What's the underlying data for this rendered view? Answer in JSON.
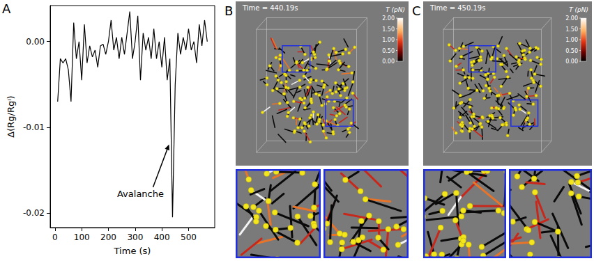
{
  "chart_data": {
    "type": "line",
    "panel": "A",
    "x": [
      10,
      20,
      30,
      40,
      50,
      60,
      70,
      80,
      90,
      100,
      110,
      120,
      130,
      140,
      150,
      160,
      170,
      180,
      190,
      200,
      210,
      220,
      230,
      240,
      250,
      260,
      270,
      280,
      290,
      300,
      310,
      320,
      330,
      340,
      350,
      360,
      370,
      380,
      390,
      400,
      410,
      420,
      430,
      440,
      450,
      460,
      470,
      480,
      490,
      500,
      510,
      520,
      530,
      540,
      550,
      560,
      570
    ],
    "values": [
      -0.007,
      -0.002,
      -0.0025,
      -0.002,
      -0.0033,
      -0.007,
      0.0022,
      -0.002,
      0,
      -0.0045,
      0.002,
      -0.0025,
      -0.0005,
      -0.0018,
      -0.001,
      -0.003,
      -0.0005,
      -0.0003,
      -0.0015,
      0,
      0.0025,
      -0.001,
      0.0005,
      -0.002,
      0.0005,
      -0.0015,
      0.001,
      0.0035,
      -0.002,
      0,
      0.003,
      -0.0045,
      0.001,
      -0.001,
      0.0005,
      -0.002,
      0.0015,
      -0.002,
      0,
      -0.003,
      0.0005,
      -0.0045,
      -0.002,
      -0.0205,
      -0.005,
      0.001,
      -0.0015,
      0.0005,
      -0.001,
      0.0015,
      -0.001,
      0,
      -0.0025,
      0.002,
      -0.0005,
      0.0025,
      0
    ],
    "color": "#000000",
    "xlabel": "Time (s)",
    "ylabel": "Δ(Rg/Rgⁱ)",
    "xlim": [
      -18,
      598
    ],
    "ylim": [
      -0.0217,
      0.0042
    ],
    "xticks": [
      0,
      100,
      200,
      300,
      400,
      500
    ],
    "yticks": [
      {
        "value": 0,
        "label": "0.00"
      },
      -0.01,
      -0.02
    ],
    "grid": false,
    "annotation": {
      "text": "Avalanche",
      "x": 320,
      "y": -0.0178,
      "arrow_to": [
        427,
        -0.012
      ]
    }
  },
  "network_panels": [
    {
      "panel": "B",
      "time_label": "Time = 440.19s",
      "colorbar": {
        "title": "T (pN)",
        "range": [
          0,
          2
        ],
        "ticks": [
          {
            "value": 0,
            "label": "0.00"
          },
          {
            "value": 0.5,
            "label": "0.50"
          },
          {
            "value": 1,
            "label": "1.00"
          },
          {
            "value": 1.5,
            "label": "1.50"
          },
          {
            "value": 2,
            "label": "2.00"
          }
        ]
      }
    },
    {
      "panel": "C",
      "time_label": "Time = 450.19s",
      "colorbar": {
        "title": "T (pN)",
        "range": [
          0,
          2
        ],
        "ticks": [
          {
            "value": 0,
            "label": "0.00"
          },
          {
            "value": 0.5,
            "label": "0.50"
          },
          {
            "value": 1,
            "label": "1.00"
          },
          {
            "value": 1.5,
            "label": "1.50"
          },
          {
            "value": 2,
            "label": "2.00"
          }
        ]
      }
    }
  ]
}
